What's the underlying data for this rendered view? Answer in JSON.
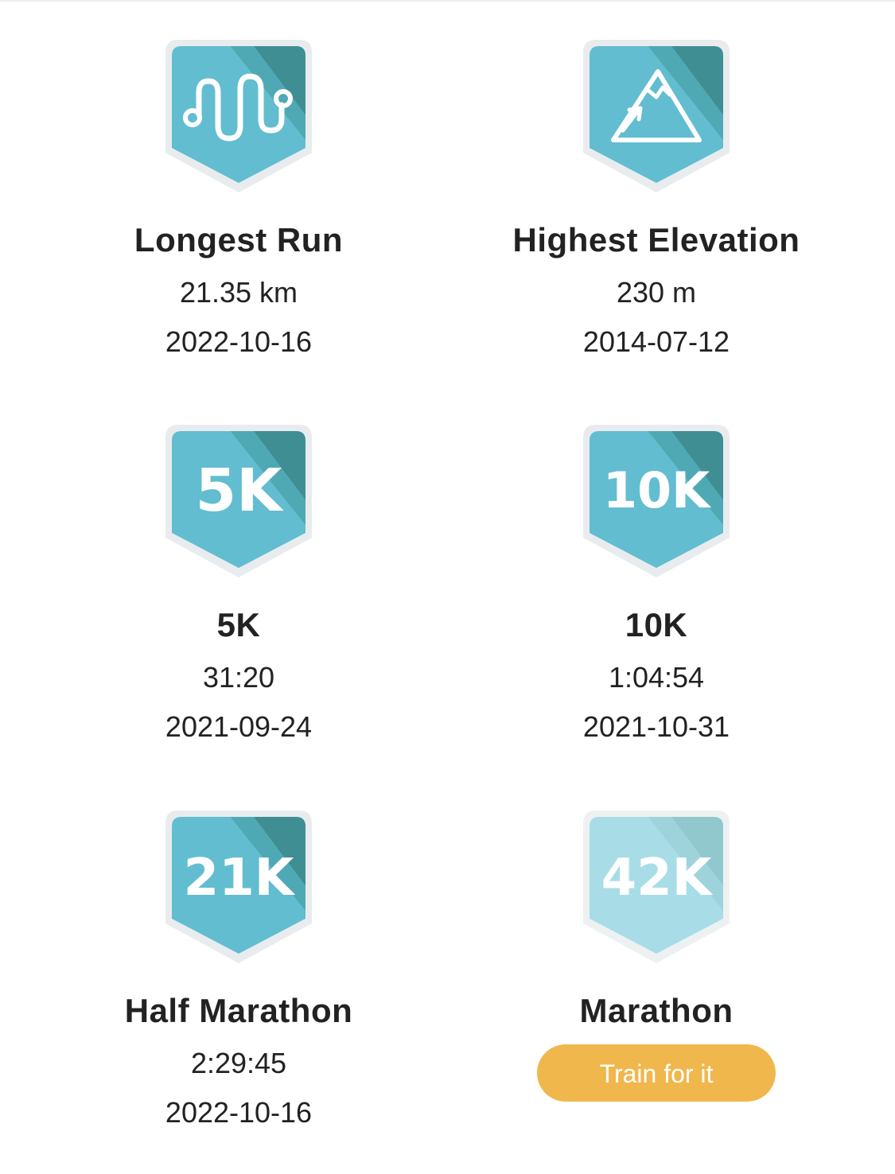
{
  "colors": {
    "badge_light": "#62bdd0",
    "badge_dark": "#3f8e94",
    "badge_mid": "#4fa9b4",
    "badge_locked_light": "#a8dde8",
    "badge_locked_dark": "#91c8cd",
    "button": "#f0b74d"
  },
  "records": [
    {
      "badge_icon": "winding-route-icon",
      "badge_text": "",
      "title": "Longest Run",
      "value": "21.35 km",
      "date": "2022-10-16",
      "achieved": true
    },
    {
      "badge_icon": "mountain-icon",
      "badge_text": "",
      "title": "Highest Elevation",
      "value": "230 m",
      "date": "2014-07-12",
      "achieved": true
    },
    {
      "badge_icon": "5k-badge-icon",
      "badge_text": "5K",
      "title": "5K",
      "value": "31:20",
      "date": "2021-09-24",
      "achieved": true
    },
    {
      "badge_icon": "10k-badge-icon",
      "badge_text": "10K",
      "title": "10K",
      "value": "1:04:54",
      "date": "2021-10-31",
      "achieved": true
    },
    {
      "badge_icon": "21k-badge-icon",
      "badge_text": "21K",
      "title": "Half Marathon",
      "value": "2:29:45",
      "date": "2022-10-16",
      "achieved": true
    },
    {
      "badge_icon": "42k-badge-icon",
      "badge_text": "42K",
      "title": "Marathon",
      "button_label": "Train for it",
      "achieved": false
    }
  ]
}
